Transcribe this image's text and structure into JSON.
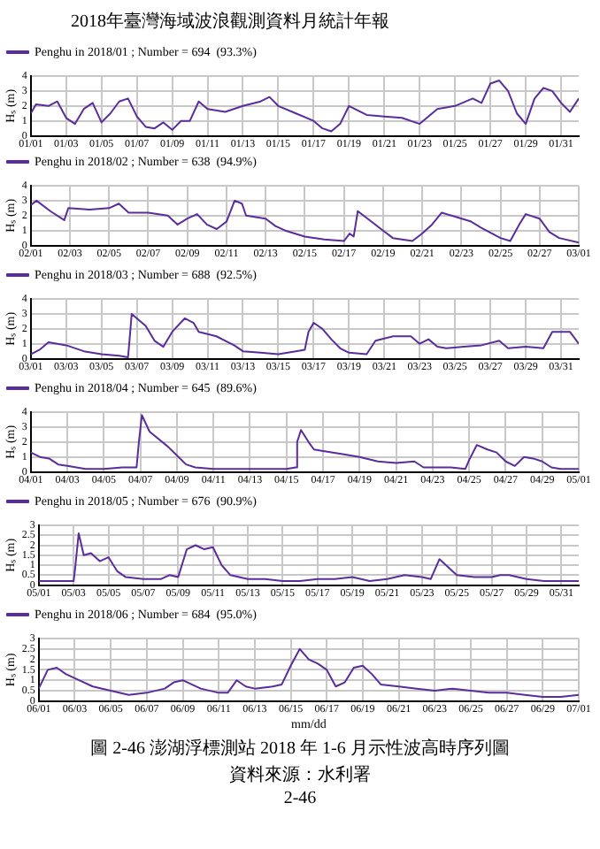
{
  "chart_data": [
    {
      "type": "line",
      "annotations": [
        "2018年臺灣海域波浪觀測資料月統計年報"
      ],
      "ylabel": "Hₛ (m)",
      "legend": "top left",
      "grid": true,
      "xlim": [
        "2018-01-01",
        "2018-02-01"
      ],
      "ylim": [
        0,
        4
      ],
      "yticks": [
        0,
        1,
        2,
        3,
        4
      ],
      "xticks": [
        {
          "value": "2018-01-01",
          "label": "01/01"
        },
        {
          "value": "2018-01-03",
          "label": "01/03"
        },
        {
          "value": "2018-01-05",
          "label": "01/05"
        },
        {
          "value": "2018-01-07",
          "label": "01/07"
        },
        {
          "value": "2018-01-09",
          "label": "01/09"
        },
        {
          "value": "2018-01-11",
          "label": "01/11"
        },
        {
          "value": "2018-01-13",
          "label": "01/13"
        },
        {
          "value": "2018-01-15",
          "label": "01/15"
        },
        {
          "value": "2018-01-17",
          "label": "01/17"
        },
        {
          "value": "2018-01-19",
          "label": "01/19"
        },
        {
          "value": "2018-01-21",
          "label": "01/21"
        },
        {
          "value": "2018-01-23",
          "label": "01/23"
        },
        {
          "value": "2018-01-25",
          "label": "01/25"
        },
        {
          "value": "2018-01-27",
          "label": "01/27"
        },
        {
          "value": "2018-01-29",
          "label": "01/29"
        },
        {
          "value": "2018-01-31",
          "label": "01/31"
        }
      ],
      "series": [
        {
          "name": "Penghu in 2018/01 ; Number = 694  (93.3%)",
          "color": "#5b2c9c",
          "x": [
            "2018-01-01",
            "2018-01-01T07:00",
            "2018-01-02",
            "2018-01-02T12:00",
            "2018-01-03",
            "2018-01-03T12:00",
            "2018-01-04",
            "2018-01-04T12:00",
            "2018-01-05",
            "2018-01-05T12:00",
            "2018-01-06",
            "2018-01-06T12:00",
            "2018-01-07",
            "2018-01-07T12:00",
            "2018-01-08",
            "2018-01-08T12:00",
            "2018-01-09",
            "2018-01-09T12:00",
            "2018-01-10",
            "2018-01-10T12:00",
            "2018-01-11",
            "2018-01-12",
            "2018-01-13",
            "2018-01-14",
            "2018-01-14T12:00",
            "2018-01-15",
            "2018-01-16",
            "2018-01-17",
            "2018-01-17T12:00",
            "2018-01-18",
            "2018-01-18T12:00",
            "2018-01-19",
            "2018-01-19T12:00",
            "2018-01-20",
            "2018-01-21",
            "2018-01-22",
            "2018-01-23",
            "2018-01-24",
            "2018-01-25",
            "2018-01-26",
            "2018-01-26T12:00",
            "2018-01-27",
            "2018-01-27T12:00",
            "2018-01-28",
            "2018-01-28T12:00",
            "2018-01-29",
            "2018-01-29T12:00",
            "2018-01-30",
            "2018-01-30T12:00",
            "2018-01-31",
            "2018-01-31T12:00",
            "2018-02-01"
          ],
          "values": [
            1.5,
            2.1,
            2.0,
            2.3,
            1.2,
            0.8,
            1.8,
            2.2,
            0.9,
            1.5,
            2.3,
            2.5,
            1.3,
            0.6,
            0.5,
            0.9,
            0.4,
            1.0,
            1.0,
            2.3,
            1.8,
            1.6,
            2.0,
            2.3,
            2.6,
            2.0,
            1.5,
            1.0,
            0.5,
            0.3,
            0.8,
            2.0,
            1.7,
            1.4,
            1.3,
            1.2,
            0.8,
            1.8,
            2.0,
            2.5,
            2.2,
            3.5,
            3.7,
            3.0,
            1.5,
            0.8,
            2.5,
            3.2,
            3.0,
            2.2,
            1.6,
            2.5
          ]
        }
      ]
    },
    {
      "type": "line",
      "ylabel": "Hₛ (m)",
      "legend": "top left",
      "grid": true,
      "xlim": [
        "2018-02-01",
        "2018-03-01"
      ],
      "ylim": [
        0,
        4
      ],
      "yticks": [
        0,
        1,
        2,
        3,
        4
      ],
      "xticks": [
        {
          "value": "2018-02-01",
          "label": "02/01"
        },
        {
          "value": "2018-02-03",
          "label": "02/03"
        },
        {
          "value": "2018-02-05",
          "label": "02/05"
        },
        {
          "value": "2018-02-07",
          "label": "02/07"
        },
        {
          "value": "2018-02-09",
          "label": "02/09"
        },
        {
          "value": "2018-02-11",
          "label": "02/11"
        },
        {
          "value": "2018-02-13",
          "label": "02/13"
        },
        {
          "value": "2018-02-15",
          "label": "02/15"
        },
        {
          "value": "2018-02-17",
          "label": "02/17"
        },
        {
          "value": "2018-02-19",
          "label": "02/19"
        },
        {
          "value": "2018-02-21",
          "label": "02/21"
        },
        {
          "value": "2018-02-23",
          "label": "02/23"
        },
        {
          "value": "2018-02-25",
          "label": "02/25"
        },
        {
          "value": "2018-02-27",
          "label": "02/27"
        },
        {
          "value": "2018-03-01",
          "label": "03/01"
        }
      ],
      "series": [
        {
          "name": "Penghu in 2018/02 ; Number = 638  (94.9%)",
          "color": "#5b2c9c",
          "x": [
            "2018-02-01",
            "2018-02-01T07:00",
            "2018-02-02",
            "2018-02-02T17:00",
            "2018-02-02T22:00",
            "2018-02-04",
            "2018-02-05",
            "2018-02-05T12:00",
            "2018-02-06",
            "2018-02-07",
            "2018-02-08",
            "2018-02-08T12:00",
            "2018-02-09",
            "2018-02-09T12:00",
            "2018-02-10",
            "2018-02-10T12:00",
            "2018-02-11",
            "2018-02-11T10:00",
            "2018-02-11T19:00",
            "2018-02-12",
            "2018-02-13",
            "2018-02-13T12:00",
            "2018-02-14",
            "2018-02-15",
            "2018-02-16",
            "2018-02-17",
            "2018-02-17T07:00",
            "2018-02-17T12:00",
            "2018-02-17T17:00",
            "2018-02-18T05:00",
            "2018-02-19",
            "2018-02-19T12:00",
            "2018-02-20T12:00",
            "2018-02-21",
            "2018-02-21T12:00",
            "2018-02-22",
            "2018-02-22T12:00",
            "2018-02-23T12:00",
            "2018-02-24",
            "2018-02-25",
            "2018-02-25T12:00",
            "2018-02-26",
            "2018-02-26T07:00",
            "2018-02-27",
            "2018-02-27T12:00",
            "2018-02-28",
            "2018-03-01"
          ],
          "values": [
            2.7,
            3.0,
            2.3,
            1.7,
            2.5,
            2.4,
            2.5,
            2.8,
            2.2,
            2.2,
            2.0,
            1.4,
            1.8,
            2.1,
            1.4,
            1.1,
            1.6,
            3.0,
            2.8,
            2.0,
            1.8,
            1.3,
            1.0,
            0.6,
            0.4,
            0.3,
            0.8,
            0.6,
            2.3,
            1.8,
            1.0,
            0.5,
            0.3,
            0.8,
            1.4,
            2.2,
            2.0,
            1.6,
            1.2,
            0.5,
            0.3,
            1.5,
            2.1,
            1.8,
            0.9,
            0.5,
            0.2
          ]
        }
      ]
    },
    {
      "type": "line",
      "ylabel": "Hₛ (m)",
      "legend": "top left",
      "grid": true,
      "xlim": [
        "2018-03-01",
        "2018-04-01"
      ],
      "ylim": [
        0,
        4
      ],
      "yticks": [
        0,
        1,
        2,
        3,
        4
      ],
      "xticks": [
        {
          "value": "2018-03-01",
          "label": "03/01"
        },
        {
          "value": "2018-03-03",
          "label": "03/03"
        },
        {
          "value": "2018-03-05",
          "label": "03/05"
        },
        {
          "value": "2018-03-07",
          "label": "03/07"
        },
        {
          "value": "2018-03-09",
          "label": "03/09"
        },
        {
          "value": "2018-03-11",
          "label": "03/11"
        },
        {
          "value": "2018-03-13",
          "label": "03/13"
        },
        {
          "value": "2018-03-15",
          "label": "03/15"
        },
        {
          "value": "2018-03-17",
          "label": "03/17"
        },
        {
          "value": "2018-03-19",
          "label": "03/19"
        },
        {
          "value": "2018-03-21",
          "label": "03/21"
        },
        {
          "value": "2018-03-23",
          "label": "03/23"
        },
        {
          "value": "2018-03-25",
          "label": "03/25"
        },
        {
          "value": "2018-03-27",
          "label": "03/27"
        },
        {
          "value": "2018-03-29",
          "label": "03/29"
        },
        {
          "value": "2018-03-31",
          "label": "03/31"
        }
      ],
      "series": [
        {
          "name": "Penghu in 2018/03 ; Number = 688  (92.5%)",
          "color": "#5b2c9c",
          "x": [
            "2018-03-01",
            "2018-03-01T12:00",
            "2018-03-02",
            "2018-03-03",
            "2018-03-04",
            "2018-03-05",
            "2018-03-06",
            "2018-03-06T12:00",
            "2018-03-06T14:00",
            "2018-03-06T17:00",
            "2018-03-07",
            "2018-03-07T12:00",
            "2018-03-08",
            "2018-03-08T12:00",
            "2018-03-09",
            "2018-03-09T17:00",
            "2018-03-10T05:00",
            "2018-03-10T12:00",
            "2018-03-11T12:00",
            "2018-03-12T12:00",
            "2018-03-13",
            "2018-03-14",
            "2018-03-15",
            "2018-03-16",
            "2018-03-16T12:00",
            "2018-03-16T17:00",
            "2018-03-17",
            "2018-03-17T12:00",
            "2018-03-18",
            "2018-03-18T12:00",
            "2018-03-19",
            "2018-03-20",
            "2018-03-20T12:00",
            "2018-03-21T12:00",
            "2018-03-22T12:00",
            "2018-03-23",
            "2018-03-23T12:00",
            "2018-03-24",
            "2018-03-24T12:00",
            "2018-03-25T12:00",
            "2018-03-26T12:00",
            "2018-03-27T12:00",
            "2018-03-28",
            "2018-03-29",
            "2018-03-30",
            "2018-03-30T12:00",
            "2018-03-31T12:00",
            "2018-04-01"
          ],
          "values": [
            0.3,
            0.6,
            1.1,
            0.9,
            0.5,
            0.3,
            0.2,
            0.1,
            1.2,
            3.0,
            2.7,
            2.2,
            1.2,
            0.8,
            1.8,
            2.7,
            2.4,
            1.8,
            1.5,
            0.9,
            0.5,
            0.4,
            0.3,
            0.5,
            0.6,
            1.8,
            2.4,
            2.0,
            1.3,
            0.7,
            0.4,
            0.3,
            1.2,
            1.5,
            1.5,
            1.0,
            1.3,
            0.8,
            0.7,
            0.8,
            0.9,
            1.2,
            0.7,
            0.8,
            0.7,
            1.8,
            1.8,
            1.0
          ]
        }
      ]
    },
    {
      "type": "line",
      "ylabel": "Hₛ (m)",
      "legend": "top left",
      "grid": true,
      "xlim": [
        "2018-04-01",
        "2018-05-01"
      ],
      "ylim": [
        0,
        4
      ],
      "yticks": [
        0,
        1,
        2,
        3,
        4
      ],
      "xticks": [
        {
          "value": "2018-04-01",
          "label": "04/01"
        },
        {
          "value": "2018-04-03",
          "label": "04/03"
        },
        {
          "value": "2018-04-05",
          "label": "04/05"
        },
        {
          "value": "2018-04-07",
          "label": "04/07"
        },
        {
          "value": "2018-04-09",
          "label": "04/09"
        },
        {
          "value": "2018-04-11",
          "label": "04/11"
        },
        {
          "value": "2018-04-13",
          "label": "04/13"
        },
        {
          "value": "2018-04-15",
          "label": "04/15"
        },
        {
          "value": "2018-04-17",
          "label": "04/17"
        },
        {
          "value": "2018-04-19",
          "label": "04/19"
        },
        {
          "value": "2018-04-21",
          "label": "04/21"
        },
        {
          "value": "2018-04-23",
          "label": "04/23"
        },
        {
          "value": "2018-04-25",
          "label": "04/25"
        },
        {
          "value": "2018-04-27",
          "label": "04/27"
        },
        {
          "value": "2018-04-29",
          "label": "04/29"
        },
        {
          "value": "2018-05-01",
          "label": "05/01"
        }
      ],
      "series": [
        {
          "name": "Penghu in 2018/04 ; Number = 645  (89.6%)",
          "color": "#5b2c9c",
          "x": [
            "2018-04-01",
            "2018-04-01T12:00",
            "2018-04-02",
            "2018-04-02T12:00",
            "2018-04-03",
            "2018-04-04",
            "2018-04-05",
            "2018-04-06",
            "2018-04-06T19:00",
            "2018-04-06T22:00",
            "2018-04-07T02:00",
            "2018-04-07T12:00",
            "2018-04-08T12:00",
            "2018-04-09",
            "2018-04-09T12:00",
            "2018-04-10",
            "2018-04-11",
            "2018-04-13",
            "2018-04-15",
            "2018-04-15T12:00",
            "2018-04-15T14:00",
            "2018-04-15T19:00",
            "2018-04-16T05:00",
            "2018-04-16T12:00",
            "2018-04-17",
            "2018-04-18",
            "2018-04-19",
            "2018-04-20",
            "2018-04-21",
            "2018-04-22",
            "2018-04-22T12:00",
            "2018-04-24",
            "2018-04-24T19:00",
            "2018-04-25",
            "2018-04-25T10:00",
            "2018-04-26",
            "2018-04-26T12:00",
            "2018-04-27",
            "2018-04-27T12:00",
            "2018-04-28",
            "2018-04-28T12:00",
            "2018-04-29",
            "2018-04-29T12:00",
            "2018-04-30",
            "2018-05-01"
          ],
          "values": [
            1.3,
            1.0,
            0.9,
            0.5,
            0.4,
            0.2,
            0.2,
            0.3,
            0.3,
            2.0,
            3.8,
            2.7,
            1.7,
            1.1,
            0.5,
            0.3,
            0.2,
            0.2,
            0.2,
            0.3,
            2.0,
            2.8,
            2.0,
            1.5,
            1.4,
            1.2,
            1.0,
            0.7,
            0.6,
            0.7,
            0.3,
            0.3,
            0.2,
            0.8,
            1.8,
            1.5,
            1.3,
            0.7,
            0.4,
            1.0,
            0.9,
            0.7,
            0.3,
            0.2,
            0.2
          ]
        }
      ]
    },
    {
      "type": "line",
      "ylabel": "Hₛ (m)",
      "legend": "top left",
      "grid": true,
      "xlim": [
        "2018-05-01",
        "2018-06-01"
      ],
      "ylim": [
        0,
        3
      ],
      "yticks": [
        0,
        0.5,
        1,
        1.5,
        2,
        2.5,
        3
      ],
      "xticks": [
        {
          "value": "2018-05-01",
          "label": "05/01"
        },
        {
          "value": "2018-05-03",
          "label": "05/03"
        },
        {
          "value": "2018-05-05",
          "label": "05/05"
        },
        {
          "value": "2018-05-07",
          "label": "05/07"
        },
        {
          "value": "2018-05-09",
          "label": "05/09"
        },
        {
          "value": "2018-05-11",
          "label": "05/11"
        },
        {
          "value": "2018-05-13",
          "label": "05/13"
        },
        {
          "value": "2018-05-15",
          "label": "05/15"
        },
        {
          "value": "2018-05-17",
          "label": "05/17"
        },
        {
          "value": "2018-05-19",
          "label": "05/19"
        },
        {
          "value": "2018-05-21",
          "label": "05/21"
        },
        {
          "value": "2018-05-23",
          "label": "05/23"
        },
        {
          "value": "2018-05-25",
          "label": "05/25"
        },
        {
          "value": "2018-05-27",
          "label": "05/27"
        },
        {
          "value": "2018-05-29",
          "label": "05/29"
        },
        {
          "value": "2018-05-31",
          "label": "05/31"
        }
      ],
      "series": [
        {
          "name": "Penghu in 2018/05 ; Number = 676  (90.9%)",
          "color": "#5b2c9c",
          "x": [
            "2018-05-01",
            "2018-05-03",
            "2018-05-03T02:00",
            "2018-05-03T07:00",
            "2018-05-03T14:00",
            "2018-05-04",
            "2018-05-04T12:00",
            "2018-05-05",
            "2018-05-05T12:00",
            "2018-05-06",
            "2018-05-07",
            "2018-05-08",
            "2018-05-08T12:00",
            "2018-05-09",
            "2018-05-09T12:00",
            "2018-05-10",
            "2018-05-10T12:00",
            "2018-05-11",
            "2018-05-11T12:00",
            "2018-05-12",
            "2018-05-13",
            "2018-05-14",
            "2018-05-15",
            "2018-05-16",
            "2018-05-17",
            "2018-05-18",
            "2018-05-19",
            "2018-05-20",
            "2018-05-21",
            "2018-05-22",
            "2018-05-23",
            "2018-05-23T12:00",
            "2018-05-24",
            "2018-05-24T12:00",
            "2018-05-25",
            "2018-05-26",
            "2018-05-27",
            "2018-05-27T12:00",
            "2018-05-28",
            "2018-05-29",
            "2018-05-30",
            "2018-05-31",
            "2018-06-01"
          ],
          "values": [
            0.2,
            0.2,
            0.8,
            2.6,
            1.5,
            1.6,
            1.2,
            1.4,
            0.7,
            0.4,
            0.3,
            0.3,
            0.5,
            0.4,
            1.8,
            2.0,
            1.8,
            1.9,
            1.0,
            0.5,
            0.3,
            0.3,
            0.2,
            0.2,
            0.3,
            0.3,
            0.4,
            0.2,
            0.3,
            0.5,
            0.4,
            0.3,
            1.3,
            0.9,
            0.5,
            0.4,
            0.4,
            0.5,
            0.5,
            0.3,
            0.2,
            0.2,
            0.2
          ]
        }
      ]
    },
    {
      "type": "line",
      "xlabel": "mm/dd",
      "ylabel": "Hₛ (m)",
      "legend": "top left",
      "grid": true,
      "xlim": [
        "2018-06-01",
        "2018-07-01"
      ],
      "ylim": [
        0,
        3
      ],
      "yticks": [
        0,
        0.5,
        1,
        1.5,
        2,
        2.5,
        3
      ],
      "annotations": [
        "圖 2-46 澎湖浮標測站 2018 年 1-6 月示性波高時序列圖",
        "資料來源：水利署",
        "2-46"
      ],
      "xticks": [
        {
          "value": "2018-06-01",
          "label": "06/01"
        },
        {
          "value": "2018-06-03",
          "label": "06/03"
        },
        {
          "value": "2018-06-05",
          "label": "06/05"
        },
        {
          "value": "2018-06-07",
          "label": "06/07"
        },
        {
          "value": "2018-06-09",
          "label": "06/09"
        },
        {
          "value": "2018-06-11",
          "label": "06/11"
        },
        {
          "value": "2018-06-13",
          "label": "06/13"
        },
        {
          "value": "2018-06-15",
          "label": "06/15"
        },
        {
          "value": "2018-06-17",
          "label": "06/17"
        },
        {
          "value": "2018-06-19",
          "label": "06/19"
        },
        {
          "value": "2018-06-21",
          "label": "06/21"
        },
        {
          "value": "2018-06-23",
          "label": "06/23"
        },
        {
          "value": "2018-06-25",
          "label": "06/25"
        },
        {
          "value": "2018-06-27",
          "label": "06/27"
        },
        {
          "value": "2018-06-29",
          "label": "06/29"
        },
        {
          "value": "2018-07-01",
          "label": "07/01"
        }
      ],
      "series": [
        {
          "name": "Penghu in 2018/06 ; Number = 684  (95.0%)",
          "color": "#5b2c9c",
          "x": [
            "2018-06-01",
            "2018-06-01T12:00",
            "2018-06-02",
            "2018-06-02T12:00",
            "2018-06-03",
            "2018-06-04",
            "2018-06-05",
            "2018-06-06",
            "2018-06-07",
            "2018-06-08",
            "2018-06-08T12:00",
            "2018-06-09",
            "2018-06-09T12:00",
            "2018-06-10",
            "2018-06-11",
            "2018-06-11T12:00",
            "2018-06-12",
            "2018-06-12T12:00",
            "2018-06-13",
            "2018-06-14",
            "2018-06-14T12:00",
            "2018-06-15",
            "2018-06-15T12:00",
            "2018-06-16",
            "2018-06-16T12:00",
            "2018-06-17",
            "2018-06-17T12:00",
            "2018-06-18",
            "2018-06-18T12:00",
            "2018-06-19",
            "2018-06-19T12:00",
            "2018-06-20",
            "2018-06-21",
            "2018-06-22",
            "2018-06-23",
            "2018-06-24",
            "2018-06-25",
            "2018-06-26",
            "2018-06-27",
            "2018-06-28",
            "2018-06-29",
            "2018-06-30",
            "2018-07-01"
          ],
          "values": [
            0.6,
            1.5,
            1.6,
            1.3,
            1.1,
            0.7,
            0.5,
            0.3,
            0.4,
            0.6,
            0.9,
            1.0,
            0.8,
            0.6,
            0.4,
            0.4,
            1.0,
            0.7,
            0.6,
            0.7,
            0.8,
            1.7,
            2.5,
            2.0,
            1.8,
            1.5,
            0.7,
            0.9,
            1.6,
            1.7,
            1.3,
            0.8,
            0.7,
            0.6,
            0.5,
            0.6,
            0.5,
            0.4,
            0.4,
            0.3,
            0.2,
            0.2,
            0.3
          ]
        }
      ]
    }
  ]
}
